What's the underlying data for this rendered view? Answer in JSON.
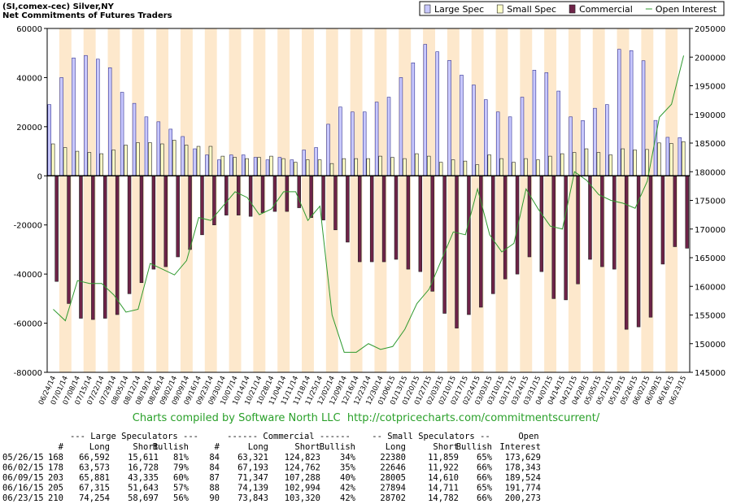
{
  "chart_data": {
    "type": "bar",
    "title": "(SI,comex-cec) Silver,NY",
    "subtitle": "Net Commitments of Futures Traders",
    "categories": [
      "06/24/14",
      "07/01/14",
      "07/08/14",
      "07/15/14",
      "07/22/14",
      "07/29/14",
      "08/05/14",
      "08/12/14",
      "08/19/14",
      "08/26/14",
      "09/02/14",
      "09/09/14",
      "09/16/14",
      "09/23/14",
      "09/30/14",
      "10/07/14",
      "10/14/14",
      "10/21/14",
      "10/28/14",
      "11/04/14",
      "11/11/14",
      "11/18/14",
      "11/25/14",
      "12/02/14",
      "12/09/14",
      "12/16/14",
      "12/23/14",
      "12/30/14",
      "01/06/15",
      "01/13/15",
      "01/20/15",
      "01/27/15",
      "02/03/15",
      "02/10/15",
      "02/17/15",
      "02/24/15",
      "03/03/15",
      "03/10/15",
      "03/17/15",
      "03/24/15",
      "03/31/15",
      "04/07/15",
      "04/14/15",
      "04/21/15",
      "04/28/15",
      "05/05/15",
      "05/12/15",
      "05/19/15",
      "05/26/15",
      "06/02/15",
      "06/09/15",
      "06/16/15",
      "06/23/15"
    ],
    "series": [
      {
        "name": "Large Spec",
        "color": "#c8c8ff",
        "values": [
          29000,
          40000,
          48000,
          49000,
          47500,
          44000,
          34000,
          29500,
          24000,
          22000,
          19000,
          16000,
          11000,
          8500,
          6500,
          8500,
          8500,
          7500,
          6500,
          7500,
          6500,
          10500,
          11500,
          21000,
          28000,
          26000,
          26000,
          30000,
          32000,
          40000,
          46000,
          53500,
          50500,
          47000,
          41000,
          37000,
          31000,
          26000,
          24000,
          32000,
          43000,
          42000,
          34500,
          24000,
          22500,
          27500,
          29000,
          51500,
          50981,
          46845,
          22546,
          15672,
          15557
        ]
      },
      {
        "name": "Small Spec",
        "color": "#ffffc8",
        "values": [
          13000,
          11500,
          10000,
          9500,
          9000,
          10500,
          12500,
          13500,
          13500,
          13000,
          14500,
          12500,
          12000,
          12000,
          8000,
          7500,
          7000,
          7500,
          8000,
          7000,
          5500,
          6500,
          6500,
          5000,
          7000,
          7000,
          7000,
          8000,
          7500,
          7000,
          9000,
          8000,
          5500,
          6500,
          6000,
          4500,
          8500,
          7000,
          5500,
          7000,
          6500,
          8000,
          9000,
          9500,
          11000,
          9500,
          8500,
          11000,
          10521,
          10724,
          13395,
          13183,
          13920
        ]
      },
      {
        "name": "Commercial",
        "color": "#6e2348",
        "values": [
          -43000,
          -52000,
          -58000,
          -58500,
          -58000,
          -56500,
          -48000,
          -43500,
          -38000,
          -37000,
          -33000,
          -30000,
          -24000,
          -20000,
          -16000,
          -16000,
          -16500,
          -15000,
          -14500,
          -14500,
          -13000,
          -17000,
          -18000,
          -22000,
          -27000,
          -35000,
          -35000,
          -35000,
          -34000,
          -38000,
          -39000,
          -47000,
          -56000,
          -62000,
          -56500,
          -53500,
          -48000,
          -42000,
          -40000,
          -33000,
          -39000,
          -50000,
          -50500,
          -44000,
          -34000,
          -37000,
          -38000,
          -62500,
          -61502,
          -57569,
          -35941,
          -28855,
          -29477
        ]
      },
      {
        "name": "Open Interest",
        "color": "#2f9a2f",
        "type": "line",
        "axis": "y2",
        "values": [
          156000,
          154000,
          161000,
          160500,
          160500,
          158500,
          155500,
          156000,
          164000,
          163000,
          162000,
          164500,
          172000,
          171500,
          174000,
          176500,
          175500,
          172500,
          173500,
          176500,
          176500,
          171500,
          174000,
          155000,
          148500,
          148500,
          150000,
          149000,
          149500,
          152500,
          157000,
          159500,
          164500,
          169500,
          169000,
          177000,
          169000,
          166000,
          167500,
          177000,
          173500,
          170500,
          170000,
          180000,
          178500,
          176000,
          175000,
          174500,
          173629,
          178343,
          189524,
          191774,
          200273
        ]
      }
    ],
    "ylim": [
      -80000,
      60000
    ],
    "yticks": [
      -80000,
      -60000,
      -40000,
      -20000,
      0,
      20000,
      40000,
      60000
    ],
    "y2lim": [
      145000,
      205000
    ],
    "y2ticks": [
      145000,
      150000,
      155000,
      160000,
      165000,
      170000,
      175000,
      180000,
      185000,
      190000,
      195000,
      200000,
      205000
    ],
    "band_color": "#fde8cc",
    "legend": "top-right",
    "footer": "Charts compiled by Software North LLC  http://cotpricecharts.com/commitmentscurrent/"
  },
  "table": {
    "groups": [
      "--- Large Speculators ---",
      "------ Commercial ------",
      "-- Small Speculators --",
      "Open"
    ],
    "columns": [
      "#",
      "Long",
      "Short",
      "Bullish",
      "#",
      "Long",
      "Short",
      "Bullish",
      "Long",
      "Short",
      "Bullish",
      "Interest"
    ],
    "rows": [
      [
        "05/26/15",
        "168",
        "66,592",
        "15,611",
        "81%",
        "84",
        "63,321",
        "124,823",
        "34%",
        "22380",
        "11,859",
        "65%",
        "173,629"
      ],
      [
        "06/02/15",
        "178",
        "63,573",
        "16,728",
        "79%",
        "84",
        "67,193",
        "124,762",
        "35%",
        "22646",
        "11,922",
        "66%",
        "178,343"
      ],
      [
        "06/09/15",
        "203",
        "65,881",
        "43,335",
        "60%",
        "87",
        "71,347",
        "107,288",
        "40%",
        "28005",
        "14,610",
        "66%",
        "189,524"
      ],
      [
        "06/16/15",
        "205",
        "67,315",
        "51,643",
        "57%",
        "88",
        "74,139",
        "102,994",
        "42%",
        "27894",
        "14,711",
        "65%",
        "191,774"
      ],
      [
        "06/23/15",
        "210",
        "74,254",
        "58,697",
        "56%",
        "90",
        "73,843",
        "103,320",
        "42%",
        "28702",
        "14,782",
        "66%",
        "200,273"
      ]
    ]
  }
}
